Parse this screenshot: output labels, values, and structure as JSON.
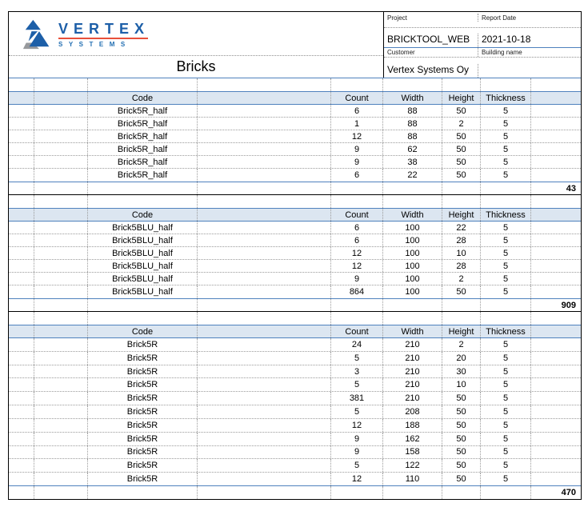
{
  "page_title": "Bricks",
  "logo": {
    "brand": "VERTEX",
    "subtitle": "SYSTEMS"
  },
  "meta": {
    "project_label": "Project",
    "project_value": "BRICKTOOL_WEB",
    "report_date_label": "Report Date",
    "report_date_value": "2021-10-18",
    "customer_label": "Customer",
    "customer_value": "Vertex Systems Oy",
    "building_label": "Building name",
    "building_value": ""
  },
  "columns": [
    "Code",
    "Count",
    "Width",
    "Height",
    "Thickness"
  ],
  "tables": [
    {
      "rows": [
        [
          "Brick5R_half",
          "6",
          "88",
          "50",
          "5"
        ],
        [
          "Brick5R_half",
          "1",
          "88",
          "2",
          "5"
        ],
        [
          "Brick5R_half",
          "12",
          "88",
          "50",
          "5"
        ],
        [
          "Brick5R_half",
          "9",
          "62",
          "50",
          "5"
        ],
        [
          "Brick5R_half",
          "9",
          "38",
          "50",
          "5"
        ],
        [
          "Brick5R_half",
          "6",
          "22",
          "50",
          "5"
        ]
      ],
      "total": "43"
    },
    {
      "rows": [
        [
          "Brick5BLU_half",
          "6",
          "100",
          "22",
          "5"
        ],
        [
          "Brick5BLU_half",
          "6",
          "100",
          "28",
          "5"
        ],
        [
          "Brick5BLU_half",
          "12",
          "100",
          "10",
          "5"
        ],
        [
          "Brick5BLU_half",
          "12",
          "100",
          "28",
          "5"
        ],
        [
          "Brick5BLU_half",
          "9",
          "100",
          "2",
          "5"
        ],
        [
          "Brick5BLU_half",
          "864",
          "100",
          "50",
          "5"
        ]
      ],
      "total": "909"
    },
    {
      "rows": [
        [
          "Brick5R",
          "24",
          "210",
          "2",
          "5"
        ],
        [
          "Brick5R",
          "5",
          "210",
          "20",
          "5"
        ],
        [
          "Brick5R",
          "3",
          "210",
          "30",
          "5"
        ],
        [
          "Brick5R",
          "5",
          "210",
          "10",
          "5"
        ],
        [
          "Brick5R",
          "381",
          "210",
          "50",
          "5"
        ],
        [
          "Brick5R",
          "5",
          "208",
          "50",
          "5"
        ],
        [
          "Brick5R",
          "12",
          "188",
          "50",
          "5"
        ],
        [
          "Brick5R",
          "9",
          "162",
          "50",
          "5"
        ],
        [
          "Brick5R",
          "9",
          "158",
          "50",
          "5"
        ],
        [
          "Brick5R",
          "5",
          "122",
          "50",
          "5"
        ],
        [
          "Brick5R",
          "12",
          "110",
          "50",
          "5"
        ]
      ],
      "total": "470"
    }
  ],
  "colors": {
    "accent_blue": "#4f81bd",
    "table_header_fill": "#dce6f1",
    "logo_blue": "#1d5fa8",
    "logo_red": "#e8503a",
    "grid_dotted": "#9b9b9b"
  }
}
